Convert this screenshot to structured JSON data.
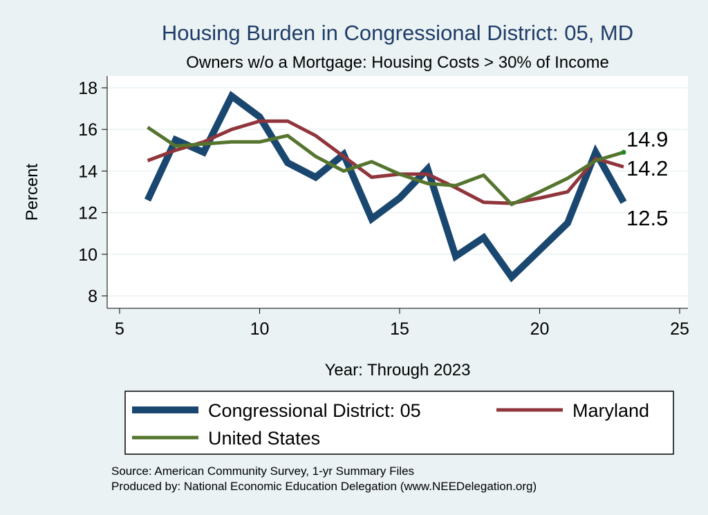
{
  "chart_data": {
    "type": "line",
    "title": "Housing Burden in Congressional District:  05, MD",
    "subtitle": "Owners w/o a Mortgage: Housing Costs > 30% of Income",
    "xlabel": "Year: Through 2023",
    "ylabel": "Percent",
    "xlim": [
      5,
      25
    ],
    "ylim": [
      7.8,
      18.4
    ],
    "xticks": [
      5,
      10,
      15,
      20,
      25
    ],
    "yticks": [
      8,
      10,
      12,
      14,
      16,
      18
    ],
    "grid": true,
    "series": [
      {
        "name": "Congressional District:  05",
        "color": "#1a476f",
        "x": [
          6,
          7,
          8,
          9,
          10,
          11,
          12,
          13,
          14,
          15,
          16,
          17,
          18,
          19,
          20,
          21,
          22,
          23
        ],
        "values": [
          12.6,
          15.5,
          14.9,
          17.6,
          16.6,
          14.4,
          13.7,
          14.8,
          11.7,
          12.7,
          14.1,
          9.9,
          10.8,
          8.9,
          10.2,
          11.5,
          14.9,
          12.5
        ],
        "end_label": "12.5"
      },
      {
        "name": "Maryland",
        "color": "#90353b",
        "x": [
          6,
          7,
          8,
          9,
          10,
          11,
          12,
          13,
          14,
          15,
          16,
          17,
          18,
          19,
          20,
          21,
          22,
          23
        ],
        "values": [
          14.5,
          15.0,
          15.4,
          16.0,
          16.4,
          16.4,
          15.7,
          14.7,
          13.7,
          13.85,
          13.85,
          13.2,
          12.5,
          12.45,
          12.7,
          13.0,
          14.6,
          14.2
        ],
        "end_label": "14.2"
      },
      {
        "name": "United States",
        "color": "#55752f",
        "x": [
          6,
          7,
          8,
          9,
          10,
          11,
          12,
          13,
          14,
          15,
          16,
          17,
          18,
          19,
          20,
          21,
          22,
          23
        ],
        "values": [
          16.1,
          15.2,
          15.3,
          15.4,
          15.4,
          15.7,
          14.7,
          14.0,
          14.45,
          13.85,
          13.4,
          13.3,
          13.8,
          12.4,
          13.0,
          13.65,
          14.5,
          14.9
        ],
        "end_label": "14.9"
      }
    ],
    "legend": {
      "position": "bottom",
      "entries": [
        "Congressional District:  05",
        "Maryland",
        "United States"
      ]
    },
    "source_lines": [
      "Source: American Community Survey, 1-yr Summary Files",
      "Produced by: National Economic Education Delegation (www.NEEDelegation.org)"
    ]
  }
}
